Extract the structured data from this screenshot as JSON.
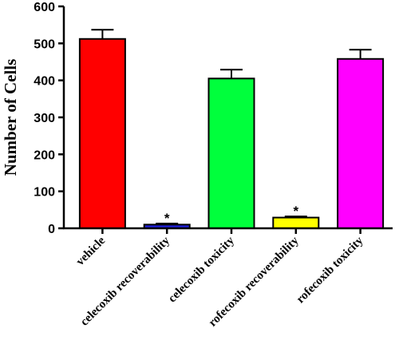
{
  "chart_data": {
    "type": "bar",
    "categories": [
      "vehicle",
      "celecoxib recoverability",
      "celecoxib toxicity",
      "rofecoxib recoverability",
      "rofecoxib toxicity"
    ],
    "values": [
      512,
      10,
      405,
      29,
      458
    ],
    "errors": [
      25,
      3,
      24,
      3,
      25
    ],
    "colors": [
      "#ff0000",
      "#1f1fd8",
      "#00ff3c",
      "#ffff00",
      "#ff00ff"
    ],
    "annotations": [
      "",
      "*",
      "",
      "*",
      ""
    ],
    "ylabel": "Number of Cells",
    "xlabel": "",
    "title": "",
    "ylim": [
      0,
      600
    ],
    "yticks": [
      0,
      100,
      200,
      300,
      400,
      500,
      600
    ],
    "grid": false
  }
}
